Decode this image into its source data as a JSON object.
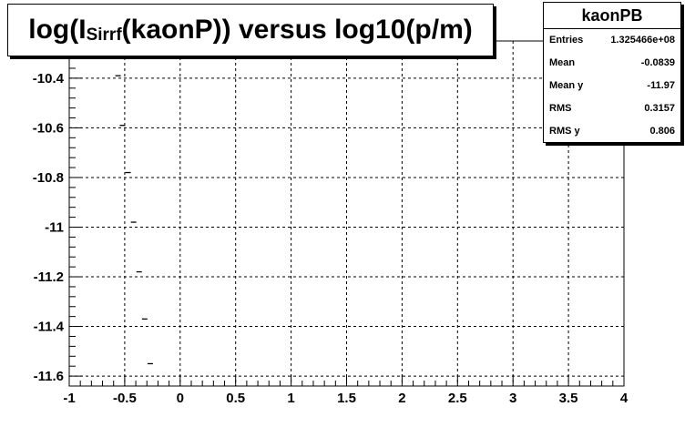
{
  "title": {
    "prefix": "log(I",
    "sub": "Sirrf",
    "suffix": "(kaonP)) versus log10(p/m)"
  },
  "stats": {
    "name": "kaonPB",
    "rows": [
      {
        "label": "Entries",
        "value": "1.325466e+08"
      },
      {
        "label": "Mean",
        "value": "-0.0839"
      },
      {
        "label": "Mean y",
        "value": "-11.97"
      },
      {
        "label": "RMS",
        "value": "0.3157"
      },
      {
        "label": "RMS y",
        "value": "0.806"
      }
    ]
  },
  "chart_data": {
    "type": "scatter",
    "title": "log(I_Sirrf(kaonP)) versus log10(p/m)",
    "xlabel": "",
    "ylabel": "",
    "xlim": [
      -1,
      4
    ],
    "ylim": [
      -11.64,
      -10.25
    ],
    "grid": true,
    "x_ticks": [
      -1,
      -0.5,
      0,
      0.5,
      1,
      1.5,
      2,
      2.5,
      3,
      3.5,
      4
    ],
    "x_tick_labels": [
      "-1",
      "-0.5",
      "0",
      "0.5",
      "1",
      "1.5",
      "2",
      "2.5",
      "3",
      "3.5",
      "4"
    ],
    "y_ticks": [
      -10.4,
      -10.6,
      -10.8,
      -11,
      -11.2,
      -11.4,
      -11.6
    ],
    "y_tick_labels": [
      "-10.4",
      "-10.6",
      "-10.8",
      "-11",
      "-11.2",
      "-11.4",
      "-11.6"
    ],
    "points": [
      {
        "x": -0.56,
        "y": -10.39
      },
      {
        "x": -0.52,
        "y": -10.59
      },
      {
        "x": -0.47,
        "y": -10.78
      },
      {
        "x": -0.42,
        "y": -10.98
      },
      {
        "x": -0.37,
        "y": -11.18
      },
      {
        "x": -0.32,
        "y": -11.37
      },
      {
        "x": -0.27,
        "y": -11.55
      }
    ]
  },
  "colors": {
    "axis": "#000000",
    "grid": "#000000",
    "marker": "#000000",
    "background": "#ffffff"
  }
}
